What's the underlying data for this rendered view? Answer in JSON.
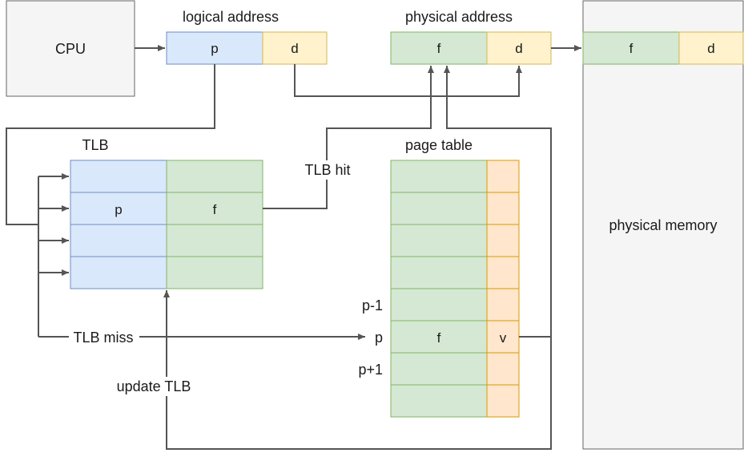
{
  "cpu": {
    "label": "CPU"
  },
  "logical_address": {
    "title": "logical address",
    "p": "p",
    "d": "d"
  },
  "physical_address": {
    "title": "physical address",
    "f": "f",
    "d": "d"
  },
  "tlb": {
    "title": "TLB",
    "p": "p",
    "f": "f"
  },
  "page_table": {
    "title": "page table",
    "row_labels": {
      "prev": "p-1",
      "cur": "p",
      "next": "p+1"
    },
    "f": "f",
    "valid": "v"
  },
  "physical_memory": {
    "label": "physical memory",
    "f": "f",
    "d": "d"
  },
  "edges": {
    "tlb_hit": "TLB hit",
    "tlb_miss": "TLB miss",
    "update_tlb": "update TLB"
  },
  "colors": {
    "blue_fill": "#dae8fc",
    "blue_stroke": "#6c8ebf",
    "yellow_fill": "#fff2cc",
    "yellow_stroke": "#d6b656",
    "green_fill": "#d5e8d4",
    "green_stroke": "#82b366",
    "orange_fill": "#ffe6cc",
    "orange_stroke": "#d79b00",
    "gray_fill": "#f5f5f5",
    "gray_stroke": "#666666",
    "line": "#555555"
  }
}
